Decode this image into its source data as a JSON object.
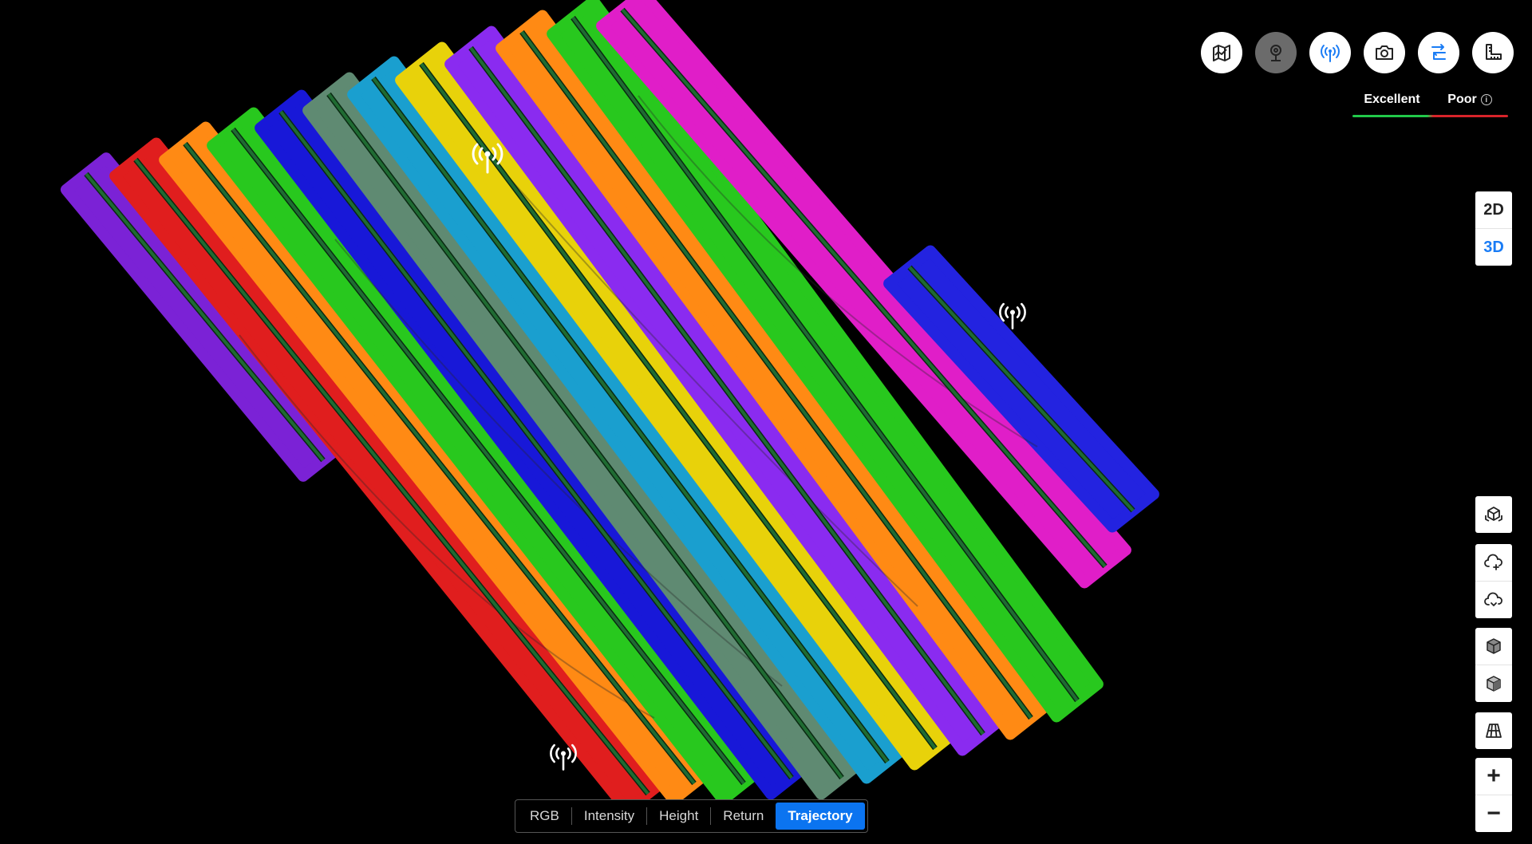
{
  "toolbar": {
    "buttons": [
      {
        "name": "map-layer",
        "icon": "map-icon",
        "state": "default"
      },
      {
        "name": "location-pin",
        "icon": "pin-icon",
        "state": "disabled"
      },
      {
        "name": "base-station",
        "icon": "signal-tower-icon",
        "state": "active"
      },
      {
        "name": "photos",
        "icon": "camera-icon",
        "state": "default"
      },
      {
        "name": "trajectory-route",
        "icon": "route-icon",
        "state": "active"
      },
      {
        "name": "measure",
        "icon": "ruler-icon",
        "state": "default"
      }
    ]
  },
  "legend": {
    "excellent_label": "Excellent",
    "poor_label": "Poor",
    "info_icon": "info-icon",
    "colors": {
      "excellent": "#21c94a",
      "poor": "#d8232a"
    }
  },
  "view_mode": {
    "options": [
      "2D",
      "3D"
    ],
    "selected": "3D",
    "accent": "#1a7cf5"
  },
  "side_tools": [
    {
      "name": "model",
      "icon": "cube-box-icon"
    },
    {
      "name": "cloud-upload",
      "icon": "cloud-plus-icon"
    },
    {
      "name": "cloud-download",
      "icon": "cloud-arrow-icon"
    },
    {
      "name": "solid-view",
      "icon": "solid-cube-icon"
    },
    {
      "name": "wire-view",
      "icon": "wire-cube-icon"
    },
    {
      "name": "ground-grid",
      "icon": "grid-plane-icon"
    }
  ],
  "zoom": {
    "in_label": "+",
    "out_label": "−"
  },
  "color_modes": {
    "options": [
      "RGB",
      "Intensity",
      "Height",
      "Return",
      "Trajectory"
    ],
    "selected": "Trajectory",
    "accent": "#0b74f0"
  },
  "map": {
    "strip_colors": [
      "#7b22d6",
      "#e01e1e",
      "#ff8a14",
      "#28c81e",
      "#1818d8",
      "#5f8a72",
      "#1a9fcf",
      "#e8d20a",
      "#8a2bf0",
      "#ff8a14",
      "#28c81e",
      "#e01ec8",
      "#2323e0"
    ],
    "trajectory_color": "#1f6b32",
    "base_station_icon": "signal-tower-icon"
  }
}
